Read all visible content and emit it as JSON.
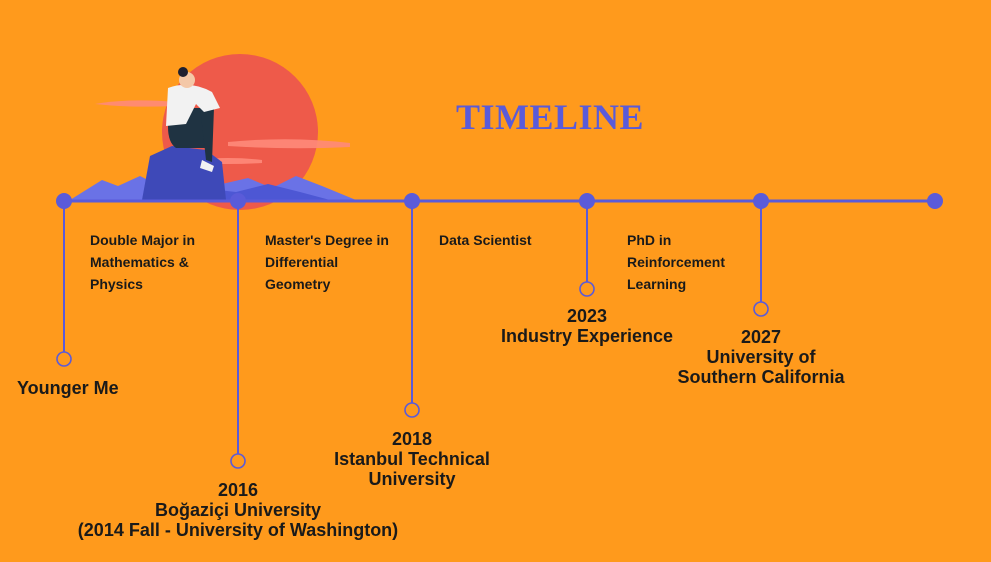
{
  "title": "TIMELINE",
  "colors": {
    "background": "#FF9A1C",
    "accent": "#5A5BD9",
    "sun": "#EE5A4A",
    "mountain": "#6A72E6",
    "rock": "#3E49B8"
  },
  "illustration": {
    "name": "person-sitting-on-rock-before-sun",
    "icons": [
      "sun-icon",
      "person-icon",
      "rock-icon",
      "mountains-icon",
      "clouds-icon"
    ]
  },
  "descriptions": [
    [
      "Double Major in",
      "Mathematics &",
      "Physics"
    ],
    [
      "Master's Degree in",
      "Differential",
      "Geometry"
    ],
    [
      "Data Scientist"
    ],
    [
      "PhD in",
      "Reinforcement",
      "Learning"
    ]
  ],
  "milestones": [
    {
      "lines": [
        "Younger Me"
      ]
    },
    {
      "lines": [
        "2016",
        "Boğaziçi University",
        "(2014 Fall - University of Washington)"
      ]
    },
    {
      "lines": [
        "2018",
        "Istanbul Technical",
        "University"
      ]
    },
    {
      "lines": [
        "2023",
        "Industry Experience"
      ]
    },
    {
      "lines": [
        "2027",
        "University of",
        "Southern California"
      ]
    }
  ]
}
